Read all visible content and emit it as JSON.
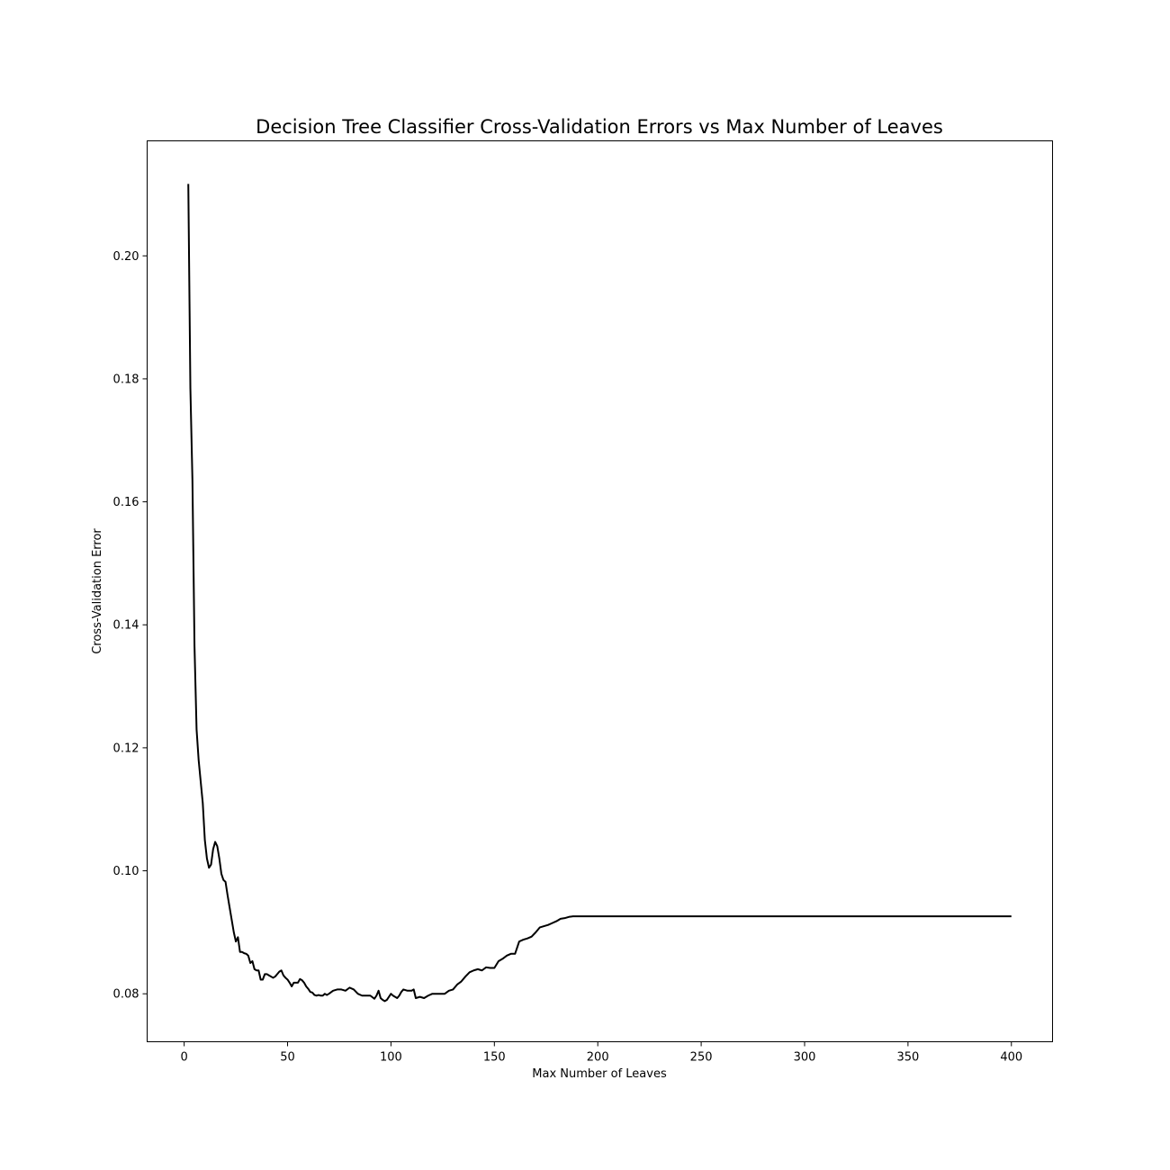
{
  "chart_data": {
    "type": "line",
    "title": "Decision Tree Classifier Cross-Validation Errors vs Max Number of Leaves",
    "xlabel": "Max Number of Leaves",
    "ylabel": "Cross-Validation Error",
    "xlim": [
      -17.9,
      419.9
    ],
    "ylim": [
      0.0722,
      0.2187
    ],
    "xticks": [
      0,
      50,
      100,
      150,
      200,
      250,
      300,
      350,
      400
    ],
    "yticks": [
      0.08,
      0.1,
      0.12,
      0.14,
      0.16,
      0.18,
      0.2
    ],
    "xtick_labels": [
      "0",
      "50",
      "100",
      "150",
      "200",
      "250",
      "300",
      "350",
      "400"
    ],
    "ytick_labels": [
      "0.08",
      "0.10",
      "0.12",
      "0.14",
      "0.16",
      "0.18",
      "0.20"
    ],
    "grid": false,
    "legend": null,
    "line_color": "#000000",
    "series": [
      {
        "x": [
          2,
          3,
          4,
          5,
          6,
          7,
          8,
          9,
          10,
          11,
          12,
          13,
          14,
          15,
          16,
          17,
          18,
          19,
          20,
          21,
          22,
          23,
          24,
          25,
          26,
          27,
          28,
          29,
          30,
          31,
          32,
          33,
          34,
          35,
          36,
          37,
          38,
          39,
          40,
          41,
          42,
          43,
          44,
          45,
          46,
          47,
          48,
          49,
          50,
          51,
          52,
          53,
          54,
          55,
          56,
          57,
          58,
          59,
          60,
          61,
          62,
          63,
          64,
          65,
          66,
          67,
          68,
          69,
          70,
          72,
          74,
          76,
          78,
          80,
          82,
          84,
          86,
          88,
          90,
          92,
          93,
          94,
          95,
          96,
          97,
          98,
          100,
          101,
          102,
          103,
          104,
          105,
          106,
          108,
          110,
          111,
          112,
          114,
          116,
          118,
          120,
          122,
          124,
          126,
          128,
          130,
          132,
          134,
          136,
          138,
          140,
          142,
          144,
          146,
          148,
          150,
          152,
          154,
          156,
          158,
          160,
          162,
          164,
          166,
          168,
          170,
          172,
          174,
          176,
          178,
          180,
          182,
          184,
          186,
          188,
          200,
          250,
          300,
          350,
          400
        ],
        "y": [
          0.2117,
          0.1785,
          0.1635,
          0.1365,
          0.123,
          0.118,
          0.1145,
          0.111,
          0.105,
          0.102,
          0.1005,
          0.101,
          0.1035,
          0.1047,
          0.104,
          0.102,
          0.0995,
          0.0985,
          0.0982,
          0.096,
          0.094,
          0.092,
          0.09,
          0.0885,
          0.0892,
          0.0868,
          0.0868,
          0.0866,
          0.0865,
          0.0862,
          0.085,
          0.0853,
          0.084,
          0.0838,
          0.0838,
          0.0823,
          0.0823,
          0.0832,
          0.0832,
          0.083,
          0.0828,
          0.0826,
          0.0828,
          0.0832,
          0.0836,
          0.0838,
          0.083,
          0.0826,
          0.0823,
          0.0818,
          0.0812,
          0.0818,
          0.0818,
          0.0818,
          0.0824,
          0.0822,
          0.0818,
          0.0812,
          0.0808,
          0.0803,
          0.0802,
          0.0798,
          0.0797,
          0.0798,
          0.0797,
          0.0797,
          0.08,
          0.0798,
          0.08,
          0.0805,
          0.0807,
          0.0807,
          0.0805,
          0.081,
          0.0807,
          0.08,
          0.0797,
          0.0797,
          0.0797,
          0.0792,
          0.0797,
          0.0805,
          0.0793,
          0.079,
          0.0788,
          0.079,
          0.08,
          0.0797,
          0.0795,
          0.0793,
          0.0797,
          0.0803,
          0.0807,
          0.0805,
          0.0805,
          0.0807,
          0.0793,
          0.0795,
          0.0793,
          0.0797,
          0.08,
          0.08,
          0.08,
          0.08,
          0.0805,
          0.0807,
          0.0815,
          0.082,
          0.0828,
          0.0835,
          0.0838,
          0.084,
          0.0838,
          0.0843,
          0.0842,
          0.0842,
          0.0853,
          0.0857,
          0.0862,
          0.0865,
          0.0865,
          0.0885,
          0.0888,
          0.089,
          0.0893,
          0.09,
          0.0908,
          0.091,
          0.0912,
          0.0915,
          0.0918,
          0.0922,
          0.0923,
          0.0925,
          0.0926,
          0.0926,
          0.0926,
          0.0926,
          0.0926,
          0.0926
        ]
      }
    ]
  }
}
